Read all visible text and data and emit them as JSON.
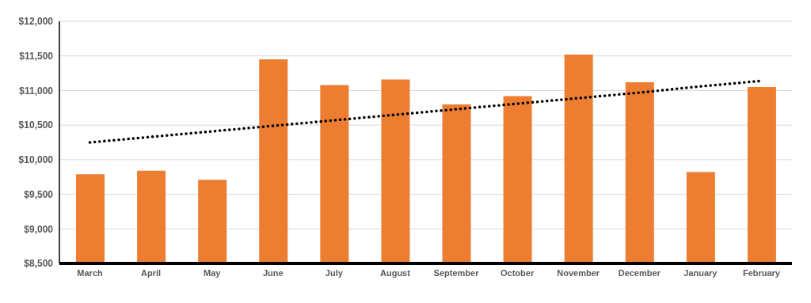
{
  "chart_data": {
    "type": "bar",
    "categories": [
      "March",
      "April",
      "May",
      "June",
      "July",
      "August",
      "September",
      "October",
      "November",
      "December",
      "January",
      "February"
    ],
    "series": [
      {
        "color": "#ed7d31",
        "values": [
          9790,
          9840,
          9710,
          11450,
          11080,
          11160,
          10800,
          10920,
          11520,
          11120,
          9820,
          11050
        ]
      },
      {
        "type": "line",
        "color": "#000000",
        "line_style": "dotted",
        "marker": "none",
        "values": [
          10250,
          10330,
          10410,
          10490,
          10570,
          10650,
          10730,
          10810,
          10890,
          10970,
          11060,
          11140
        ]
      }
    ],
    "ylim": [
      8500,
      12000
    ],
    "yticks": [
      {
        "value": 8500,
        "label": "$8,500"
      },
      {
        "value": 9000,
        "label": "$9,000"
      },
      {
        "value": 9500,
        "label": "$9,500"
      },
      {
        "value": 10000,
        "label": "$10,000"
      },
      {
        "value": 10500,
        "label": "$10,500"
      },
      {
        "value": 11000,
        "label": "$11,000"
      },
      {
        "value": 11500,
        "label": "$11,500"
      },
      {
        "value": 12000,
        "label": "$12,000"
      }
    ],
    "grid": "y",
    "legend": false
  }
}
